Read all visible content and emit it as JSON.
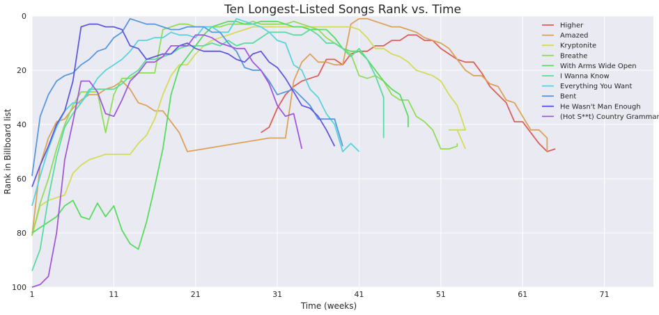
{
  "chart_data": {
    "type": "line",
    "title": "Ten Longest-Listed Songs Rank vs. Time",
    "xlabel": "Time (weeks)",
    "ylabel": "Rank in Billboard list",
    "xlim": [
      1,
      77
    ],
    "ylim": [
      100,
      0
    ],
    "y_inverted": true,
    "xticks": [
      1,
      11,
      21,
      31,
      41,
      51,
      61,
      71
    ],
    "yticks": [
      0,
      20,
      40,
      60,
      80,
      100
    ],
    "grid": true,
    "legend_position": "top-right",
    "style": {
      "background": "#eaeaf2",
      "grid_color": "#ffffff"
    },
    "series": [
      {
        "name": "Higher",
        "color": "#db5f57",
        "x": [
          29,
          30,
          31,
          32,
          33,
          34,
          35,
          36,
          37,
          38,
          39,
          40,
          41,
          42,
          43,
          44,
          45,
          46,
          47,
          48,
          49,
          50,
          51,
          52,
          53,
          54,
          55,
          56,
          57,
          58,
          59,
          60,
          61,
          62,
          63,
          64,
          65
        ],
        "y": [
          43,
          41,
          34,
          29,
          26,
          24,
          23,
          22,
          16,
          16,
          18,
          14,
          13,
          13,
          11,
          11,
          9,
          9,
          7,
          7,
          9,
          9,
          12,
          14,
          16,
          17,
          17,
          21,
          26,
          29,
          32,
          39,
          39,
          43,
          47,
          50,
          49
        ]
      },
      {
        "name": "Amazed",
        "color": "#dba157",
        "x": [
          1,
          2,
          3,
          4,
          5,
          6,
          7,
          8,
          9,
          10,
          11,
          12,
          13,
          14,
          15,
          16,
          17,
          18,
          19,
          20,
          30,
          31,
          32,
          33,
          34,
          35,
          36,
          37,
          38,
          39,
          40,
          41,
          42,
          43,
          44,
          45,
          46,
          47,
          48,
          49,
          50,
          51,
          52,
          53,
          54,
          55,
          56,
          57,
          58,
          59,
          60,
          61,
          62,
          63,
          64
        ],
        "y": [
          81,
          55,
          45,
          39,
          38,
          34,
          31,
          29,
          29,
          27,
          26,
          24,
          27,
          32,
          33,
          35,
          35,
          39,
          43,
          50,
          45,
          45,
          45,
          24,
          17,
          14,
          17,
          17,
          18,
          18,
          3,
          1,
          1,
          2,
          3,
          4,
          4,
          5,
          6,
          8,
          9,
          10,
          12,
          16,
          20,
          22,
          22,
          25,
          26,
          31,
          32,
          37,
          42,
          42,
          45
        ],
        "extra_tail": [
          [
            64,
            50
          ]
        ]
      },
      {
        "name": "Kryptonite",
        "color": "#d3db57",
        "x": [
          1,
          2,
          3,
          4,
          5,
          6,
          7,
          8,
          9,
          10,
          11,
          12,
          13,
          14,
          15,
          16,
          17,
          18,
          19,
          20,
          21,
          22,
          23,
          24,
          25,
          26,
          27,
          28,
          29,
          30,
          31,
          32,
          33,
          34,
          35,
          36,
          37,
          38,
          39,
          40,
          41,
          42,
          43,
          44,
          45,
          46,
          47,
          48,
          49,
          50,
          51,
          52,
          53,
          54
        ],
        "y": [
          81,
          70,
          68,
          67,
          66,
          58,
          55,
          53,
          52,
          51,
          51,
          51,
          51,
          47,
          44,
          38,
          29,
          22,
          18,
          18,
          14,
          11,
          9,
          8,
          7,
          6,
          5,
          4,
          4,
          4,
          4,
          4,
          4,
          4,
          4,
          4,
          4,
          4,
          4,
          4,
          5,
          8,
          12,
          12,
          14,
          15,
          17,
          20,
          21,
          22,
          24,
          29,
          33,
          42
        ],
        "tail": [
          [
            52,
            42
          ],
          [
            53,
            42
          ],
          [
            54,
            49
          ]
        ]
      },
      {
        "name": "Breathe",
        "color": "#91db57",
        "x": [
          1,
          2,
          3,
          4,
          5,
          6,
          7,
          8,
          9,
          10,
          11,
          12,
          13,
          14,
          15,
          16,
          17,
          18,
          19,
          20,
          21,
          22,
          23,
          24,
          25,
          26,
          27,
          28,
          29,
          30,
          31,
          32,
          33,
          34,
          35,
          36,
          37,
          38,
          39,
          40,
          41,
          42,
          43,
          44,
          45,
          46,
          47,
          48,
          49,
          50,
          51,
          52,
          53
        ],
        "y": [
          81,
          69,
          60,
          49,
          40,
          33,
          28,
          28,
          28,
          43,
          29,
          23,
          23,
          21,
          21,
          21,
          5,
          4,
          3,
          3,
          4,
          4,
          4,
          4,
          3,
          3,
          3,
          2,
          3,
          3,
          3,
          3,
          2,
          3,
          4,
          5,
          8,
          10,
          12,
          14,
          22,
          23,
          22,
          24,
          29,
          31,
          31,
          37,
          39,
          42,
          49,
          49,
          48
        ],
        "tail": [
          [
            53,
            47
          ]
        ]
      },
      {
        "name": "With Arms Wide Open",
        "color": "#57db5f",
        "x": [
          1,
          2,
          3,
          4,
          5,
          6,
          7,
          8,
          9,
          10,
          11,
          12,
          13,
          14,
          15,
          16,
          17,
          18,
          19,
          20,
          21,
          22,
          23,
          24,
          25,
          26,
          27,
          28,
          29,
          30,
          31,
          32,
          33,
          34,
          35,
          36,
          37,
          38,
          39,
          40,
          41,
          42,
          43,
          44,
          45,
          46,
          47
        ],
        "y": [
          80,
          78,
          76,
          74,
          70,
          68,
          74,
          75,
          69,
          74,
          70,
          79,
          84,
          86,
          76,
          63,
          49,
          29,
          19,
          15,
          11,
          7,
          4,
          3,
          2,
          2,
          3,
          3,
          2,
          2,
          2,
          3,
          4,
          4,
          5,
          5,
          5,
          8,
          12,
          13,
          13,
          16,
          20,
          24,
          27,
          29,
          37
        ],
        "tail": [
          [
            47,
            41
          ]
        ]
      },
      {
        "name": "I Wanna Know",
        "color": "#57db9f",
        "x": [
          1,
          2,
          3,
          4,
          5,
          6,
          7,
          8,
          9,
          10,
          11,
          12,
          13,
          14,
          15,
          16,
          17,
          18,
          19,
          20,
          21,
          22,
          23,
          24,
          25,
          26,
          27,
          28,
          29,
          30,
          31,
          32,
          33,
          34,
          35,
          36,
          37,
          38,
          39,
          40,
          41,
          42,
          43,
          44
        ],
        "y": [
          94,
          86,
          67,
          52,
          41,
          36,
          32,
          27,
          27,
          27,
          27,
          25,
          22,
          20,
          16,
          16,
          15,
          14,
          12,
          11,
          11,
          11,
          10,
          11,
          9,
          11,
          10,
          10,
          8,
          6,
          6,
          6,
          7,
          7,
          5,
          7,
          10,
          10,
          12,
          15,
          12,
          16,
          22,
          30
        ],
        "tail": [
          [
            44,
            45
          ]
        ]
      },
      {
        "name": "Everything You Want",
        "color": "#57d3db",
        "x": [
          1,
          2,
          3,
          4,
          5,
          6,
          7,
          8,
          9,
          10,
          11,
          12,
          13,
          14,
          15,
          16,
          17,
          18,
          19,
          20,
          21,
          22,
          23,
          24,
          25,
          26,
          27,
          28,
          29,
          30,
          31,
          32,
          33,
          34,
          35,
          36,
          37,
          38,
          39,
          40,
          41
        ],
        "y": [
          70,
          59,
          49,
          41,
          35,
          32,
          32,
          28,
          23,
          20,
          18,
          16,
          13,
          9,
          9,
          8,
          8,
          6,
          7,
          7,
          8,
          4,
          4,
          6,
          6,
          1,
          2,
          3,
          4,
          6,
          9,
          10,
          18,
          20,
          27,
          30,
          36,
          40,
          50,
          47,
          50
        ]
      },
      {
        "name": "Bent",
        "color": "#5797db",
        "x": [
          1,
          2,
          3,
          4,
          5,
          6,
          7,
          8,
          9,
          10,
          11,
          12,
          13,
          14,
          15,
          16,
          17,
          18,
          19,
          20,
          21,
          22,
          23,
          24,
          25,
          26,
          27,
          28,
          29,
          30,
          31,
          32,
          33,
          34,
          35,
          36,
          37,
          38,
          39
        ],
        "y": [
          59,
          37,
          29,
          24,
          22,
          21,
          18,
          16,
          13,
          12,
          8,
          6,
          1,
          2,
          3,
          3,
          4,
          5,
          5,
          4,
          4,
          4,
          6,
          6,
          10,
          13,
          19,
          20,
          20,
          24,
          29,
          28,
          27,
          30,
          33,
          38,
          38,
          38,
          48
        ]
      },
      {
        "name": "He Wasn't Man Enough",
        "color": "#5f57db",
        "x": [
          1,
          2,
          3,
          4,
          5,
          6,
          7,
          8,
          9,
          10,
          11,
          12,
          13,
          14,
          15,
          16,
          17,
          18,
          19,
          20,
          21,
          22,
          23,
          24,
          25,
          26,
          27,
          28,
          29,
          30,
          31,
          32,
          33,
          34,
          35,
          36,
          37,
          38
        ],
        "y": [
          63,
          55,
          48,
          40,
          35,
          24,
          4,
          3,
          3,
          4,
          4,
          5,
          11,
          12,
          16,
          15,
          14,
          14,
          11,
          10,
          12,
          13,
          13,
          13,
          14,
          16,
          17,
          14,
          13,
          17,
          19,
          23,
          28,
          33,
          34,
          37,
          42,
          48
        ]
      },
      {
        "name": "(Hot S**t) Country Grammar",
        "color": "#a157db",
        "x": [
          1,
          2,
          3,
          4,
          5,
          6,
          7,
          8,
          9,
          10,
          11,
          12,
          13,
          14,
          15,
          16,
          17,
          18,
          19,
          20,
          21,
          22,
          23,
          24,
          25,
          26,
          27,
          28,
          29,
          30,
          31,
          32,
          33,
          34
        ],
        "y": [
          100,
          99,
          96,
          80,
          53,
          39,
          24,
          24,
          28,
          36,
          37,
          31,
          24,
          21,
          17,
          17,
          15,
          11,
          11,
          11,
          7,
          7,
          8,
          10,
          11,
          12,
          12,
          17,
          20,
          25,
          33,
          37,
          36,
          49
        ]
      }
    ]
  }
}
